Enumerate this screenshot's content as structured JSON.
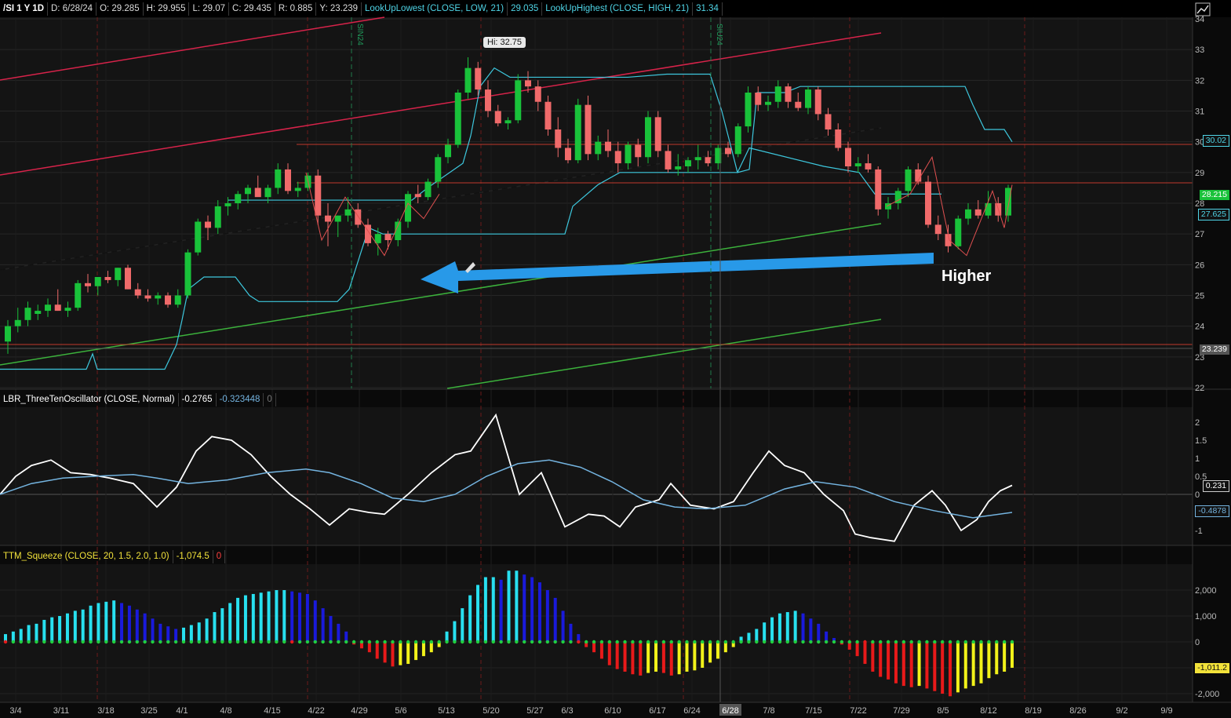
{
  "header": {
    "symbol": "/SI 1 Y 1D",
    "date": "D: 6/28/24",
    "open": "O: 29.285",
    "high": "H: 29.955",
    "low": "L: 29.07",
    "close": "C: 29.435",
    "range": "R: 0.885",
    "y": "Y: 23.239",
    "study1": "LookUpLowest (CLOSE, LOW, 21)",
    "study1_val": "29.035",
    "study2": "LookUpHighest (CLOSE, HIGH, 21)",
    "study2_val": "31.34"
  },
  "osc_header": {
    "name": "LBR_ThreeTenOscillator (CLOSE, Normal)",
    "v1": "-0.2765",
    "v2": "-0.323448",
    "v3": "0"
  },
  "sq_header": {
    "name": "TTM_Squeeze (CLOSE, 20, 1.5, 2.0, 1.0)",
    "v1": "-1,074.5",
    "v2": "0"
  },
  "price_axis": [
    "34",
    "33",
    "32",
    "31",
    "30",
    "29",
    "28",
    "27",
    "26",
    "25",
    "24",
    "23",
    "22"
  ],
  "osc_axis": [
    "2",
    "1.5",
    "1",
    "0.5",
    "0",
    "-0.5",
    "-1"
  ],
  "sq_axis": [
    "2,000",
    "1,000",
    "0",
    "-1,000",
    "-2,000"
  ],
  "price_tags": {
    "tag1": "30.02",
    "tag2": "28.215",
    "tag3": "27.625",
    "tag4": "23.239",
    "osc1": "0.231",
    "osc2": "-0.4878",
    "sq1": "-1,011.2"
  },
  "date_axis": [
    "3/4",
    "3/11",
    "3/18",
    "3/25",
    "4/1",
    "4/8",
    "4/15",
    "4/22",
    "4/29",
    "5/6",
    "5/13",
    "5/20",
    "5/27",
    "6/3",
    "6/10",
    "6/17",
    "6/24",
    "6/28",
    "7/8",
    "7/15",
    "7/22",
    "7/29",
    "8/5",
    "8/12",
    "8/19",
    "8/26",
    "9/2",
    "9/9"
  ],
  "hi_label": "Hi: 32.75",
  "annotation": "Higher",
  "vertical_markers": [
    "SIN24",
    "SIU24"
  ],
  "colors": {
    "up": "#19c23a",
    "down": "#f06a6a",
    "cyan": "#3dc7dd",
    "trend_red": "#d7234a",
    "trend_green": "#3cb23c",
    "arrow": "#2899e8",
    "hist_cyan": "#28e0f0",
    "hist_blue": "#1a1adb",
    "hist_red": "#e81a1a",
    "hist_yellow": "#f2f21a"
  },
  "chart_data": {
    "type": "candlestick",
    "title": "/SI 1 Y 1D",
    "xlabel": "",
    "ylabel": "",
    "ylim": [
      22,
      34
    ],
    "candles": [
      [
        23.5,
        24.2,
        23.1,
        24.0
      ],
      [
        24.0,
        24.6,
        23.8,
        24.2
      ],
      [
        24.2,
        24.8,
        24.0,
        24.6
      ],
      [
        24.4,
        24.7,
        24.2,
        24.5
      ],
      [
        24.5,
        24.9,
        24.3,
        24.7
      ],
      [
        24.7,
        25.2,
        24.5,
        24.5
      ],
      [
        24.5,
        24.8,
        24.3,
        24.6
      ],
      [
        24.6,
        25.5,
        24.5,
        25.4
      ],
      [
        25.4,
        25.7,
        25.1,
        25.3
      ],
      [
        25.3,
        25.6,
        25.0,
        25.6
      ],
      [
        25.6,
        25.8,
        25.4,
        25.5
      ],
      [
        25.5,
        25.9,
        25.3,
        25.9
      ],
      [
        25.9,
        26.0,
        25.2,
        25.2
      ],
      [
        25.2,
        25.4,
        24.9,
        25.0
      ],
      [
        25.0,
        25.2,
        24.8,
        24.9
      ],
      [
        24.9,
        25.1,
        24.7,
        25.0
      ],
      [
        25.0,
        25.1,
        24.6,
        24.7
      ],
      [
        24.7,
        25.2,
        24.6,
        25.0
      ],
      [
        25.0,
        26.5,
        24.9,
        26.4
      ],
      [
        26.4,
        27.5,
        26.3,
        27.4
      ],
      [
        27.4,
        27.6,
        26.8,
        27.2
      ],
      [
        27.2,
        28.1,
        27.0,
        27.9
      ],
      [
        27.9,
        28.2,
        27.6,
        28.0
      ],
      [
        28.0,
        28.4,
        27.8,
        28.3
      ],
      [
        28.3,
        28.6,
        28.0,
        28.5
      ],
      [
        28.5,
        28.9,
        28.3,
        28.2
      ],
      [
        28.2,
        28.6,
        28.0,
        28.5
      ],
      [
        28.5,
        29.3,
        28.3,
        29.1
      ],
      [
        29.1,
        29.3,
        28.3,
        28.4
      ],
      [
        28.4,
        28.7,
        28.2,
        28.5
      ],
      [
        28.5,
        29.0,
        28.4,
        28.9
      ],
      [
        28.9,
        29.1,
        27.3,
        27.6
      ],
      [
        27.6,
        28.0,
        26.6,
        27.4
      ],
      [
        27.4,
        27.6,
        26.9,
        27.6
      ],
      [
        27.6,
        28.2,
        27.4,
        27.8
      ],
      [
        27.8,
        28.0,
        27.2,
        27.3
      ],
      [
        27.3,
        27.5,
        26.6,
        26.7
      ],
      [
        26.7,
        27.2,
        26.3,
        27.0
      ],
      [
        27.0,
        27.1,
        26.5,
        26.8
      ],
      [
        26.8,
        27.5,
        26.6,
        27.4
      ],
      [
        27.4,
        28.4,
        27.2,
        28.3
      ],
      [
        28.3,
        28.6,
        28.0,
        28.2
      ],
      [
        28.2,
        28.8,
        28.1,
        28.7
      ],
      [
        28.7,
        29.6,
        28.5,
        29.5
      ],
      [
        29.5,
        30.1,
        29.3,
        29.9
      ],
      [
        29.9,
        31.7,
        29.8,
        31.6
      ],
      [
        31.6,
        32.75,
        31.4,
        32.4
      ],
      [
        32.4,
        32.6,
        31.5,
        31.7
      ],
      [
        31.7,
        32.0,
        30.8,
        31.0
      ],
      [
        31.0,
        31.2,
        30.5,
        30.6
      ],
      [
        30.6,
        30.8,
        30.4,
        30.7
      ],
      [
        30.7,
        32.2,
        30.6,
        32.0
      ],
      [
        32.0,
        32.3,
        31.6,
        31.8
      ],
      [
        31.8,
        32.0,
        31.0,
        31.3
      ],
      [
        31.3,
        31.5,
        30.2,
        30.4
      ],
      [
        30.4,
        30.8,
        29.5,
        29.8
      ],
      [
        29.8,
        30.1,
        29.3,
        29.4
      ],
      [
        29.4,
        31.4,
        29.3,
        31.2
      ],
      [
        31.2,
        31.5,
        29.4,
        29.6
      ],
      [
        29.6,
        30.2,
        29.4,
        30.0
      ],
      [
        30.0,
        30.4,
        29.5,
        29.7
      ],
      [
        29.7,
        30.0,
        29.0,
        29.3
      ],
      [
        29.3,
        30.0,
        29.1,
        29.9
      ],
      [
        29.9,
        30.1,
        29.2,
        29.5
      ],
      [
        29.5,
        31.0,
        29.3,
        30.8
      ],
      [
        30.8,
        31.0,
        29.5,
        29.7
      ],
      [
        29.7,
        29.9,
        29.0,
        29.1
      ],
      [
        29.1,
        29.6,
        28.9,
        29.2
      ],
      [
        29.2,
        29.5,
        29.0,
        29.4
      ],
      [
        29.4,
        29.9,
        29.1,
        29.5
      ],
      [
        29.5,
        29.7,
        29.2,
        29.3
      ],
      [
        29.3,
        29.9,
        29.1,
        29.8
      ],
      [
        29.8,
        30.0,
        29.5,
        29.6
      ],
      [
        29.6,
        30.6,
        29.5,
        30.5
      ],
      [
        30.5,
        31.8,
        30.3,
        31.6
      ],
      [
        31.6,
        31.8,
        31.0,
        31.2
      ],
      [
        31.2,
        31.5,
        31.0,
        31.3
      ],
      [
        31.3,
        32.0,
        31.1,
        31.8
      ],
      [
        31.8,
        31.9,
        31.1,
        31.3
      ],
      [
        31.3,
        31.6,
        31.0,
        31.1
      ],
      [
        31.1,
        31.8,
        30.9,
        31.7
      ],
      [
        31.7,
        31.8,
        30.7,
        30.9
      ],
      [
        30.9,
        31.1,
        30.2,
        30.4
      ],
      [
        30.4,
        30.6,
        29.7,
        29.8
      ],
      [
        29.8,
        30.0,
        29.0,
        29.2
      ],
      [
        29.2,
        29.5,
        29.0,
        29.3
      ],
      [
        29.3,
        29.6,
        29.0,
        29.1
      ],
      [
        29.1,
        29.2,
        27.6,
        27.8
      ],
      [
        27.8,
        28.2,
        27.5,
        28.0
      ],
      [
        28.0,
        28.5,
        27.8,
        28.4
      ],
      [
        28.4,
        29.2,
        28.2,
        29.1
      ],
      [
        29.1,
        29.3,
        28.6,
        28.7
      ],
      [
        28.7,
        28.9,
        27.2,
        27.3
      ],
      [
        27.3,
        27.6,
        26.8,
        27.0
      ],
      [
        27.0,
        27.3,
        26.4,
        26.6
      ],
      [
        26.6,
        27.6,
        26.5,
        27.5
      ],
      [
        27.5,
        28.0,
        27.3,
        27.8
      ],
      [
        27.8,
        28.1,
        27.5,
        27.6
      ],
      [
        27.6,
        28.4,
        27.5,
        28.0
      ],
      [
        28.0,
        28.2,
        27.4,
        27.6
      ],
      [
        27.6,
        28.6,
        27.4,
        28.5
      ]
    ]
  }
}
